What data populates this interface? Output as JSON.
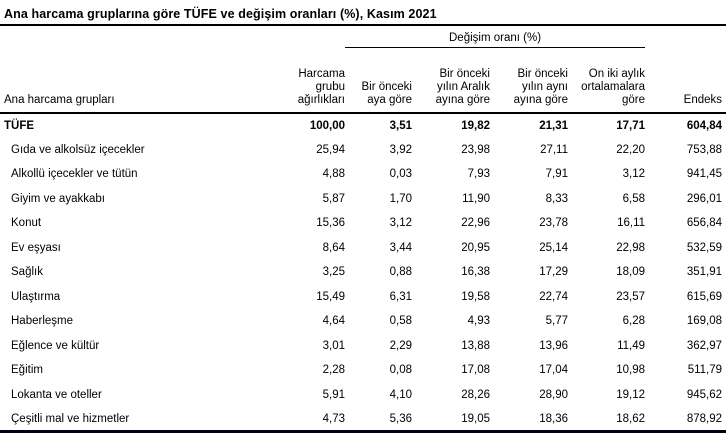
{
  "title": "Ana harcama gruplarına göre TÜFE ve değişim oranları (%), Kasım 2021",
  "table": {
    "group_header": "Değişim oranı (%)",
    "columns": {
      "label": "Ana harcama grupları",
      "weights": "Harcama\ngrubu\nağırlıkları",
      "monthly": "Bir önceki\naya göre",
      "since_december": "Bir önceki\nyılın Aralık\nayına göre",
      "annual": "Bir önceki\nyılın aynı\nayına göre",
      "twelve_month_avg": "On iki aylık\nortalamalara\ngöre",
      "index": "Endeks"
    },
    "rows": [
      {
        "label": "TÜFE",
        "bold": true,
        "indent": false,
        "values": [
          "100,00",
          "3,51",
          "19,82",
          "21,31",
          "17,71",
          "604,84"
        ]
      },
      {
        "label": "Gıda ve alkolsüz içecekler",
        "bold": false,
        "indent": true,
        "values": [
          "25,94",
          "3,92",
          "23,98",
          "27,11",
          "22,20",
          "753,88"
        ]
      },
      {
        "label": "Alkollü içecekler ve tütün",
        "bold": false,
        "indent": true,
        "values": [
          "4,88",
          "0,03",
          "7,93",
          "7,91",
          "3,12",
          "941,45"
        ]
      },
      {
        "label": "Giyim ve ayakkabı",
        "bold": false,
        "indent": true,
        "values": [
          "5,87",
          "1,70",
          "11,90",
          "8,33",
          "6,58",
          "296,01"
        ]
      },
      {
        "label": "Konut",
        "bold": false,
        "indent": true,
        "values": [
          "15,36",
          "3,12",
          "22,96",
          "23,78",
          "16,11",
          "656,84"
        ]
      },
      {
        "label": "Ev eşyası",
        "bold": false,
        "indent": true,
        "values": [
          "8,64",
          "3,44",
          "20,95",
          "25,14",
          "22,98",
          "532,59"
        ]
      },
      {
        "label": "Sağlık",
        "bold": false,
        "indent": true,
        "values": [
          "3,25",
          "0,88",
          "16,38",
          "17,29",
          "18,09",
          "351,91"
        ]
      },
      {
        "label": "Ulaştırma",
        "bold": false,
        "indent": true,
        "values": [
          "15,49",
          "6,31",
          "19,58",
          "22,74",
          "23,57",
          "615,69"
        ]
      },
      {
        "label": "Haberleşme",
        "bold": false,
        "indent": true,
        "values": [
          "4,64",
          "0,58",
          "4,93",
          "5,77",
          "6,28",
          "169,08"
        ]
      },
      {
        "label": "Eğlence ve kültür",
        "bold": false,
        "indent": true,
        "values": [
          "3,01",
          "2,29",
          "13,88",
          "13,96",
          "11,49",
          "362,97"
        ]
      },
      {
        "label": "Eğitim",
        "bold": false,
        "indent": true,
        "values": [
          "2,28",
          "0,08",
          "17,08",
          "17,04",
          "10,98",
          "511,79"
        ]
      },
      {
        "label": "Lokanta ve oteller",
        "bold": false,
        "indent": true,
        "values": [
          "5,91",
          "4,10",
          "28,26",
          "28,90",
          "19,12",
          "945,62"
        ]
      },
      {
        "label": "Çeşitli mal ve hizmetler",
        "bold": false,
        "indent": true,
        "values": [
          "4,73",
          "5,36",
          "19,05",
          "18,36",
          "18,62",
          "878,92"
        ]
      }
    ]
  },
  "colors": {
    "text": "#000000",
    "rule": "#000000",
    "bottom_rule": "#000010",
    "background": "#ffffff"
  }
}
